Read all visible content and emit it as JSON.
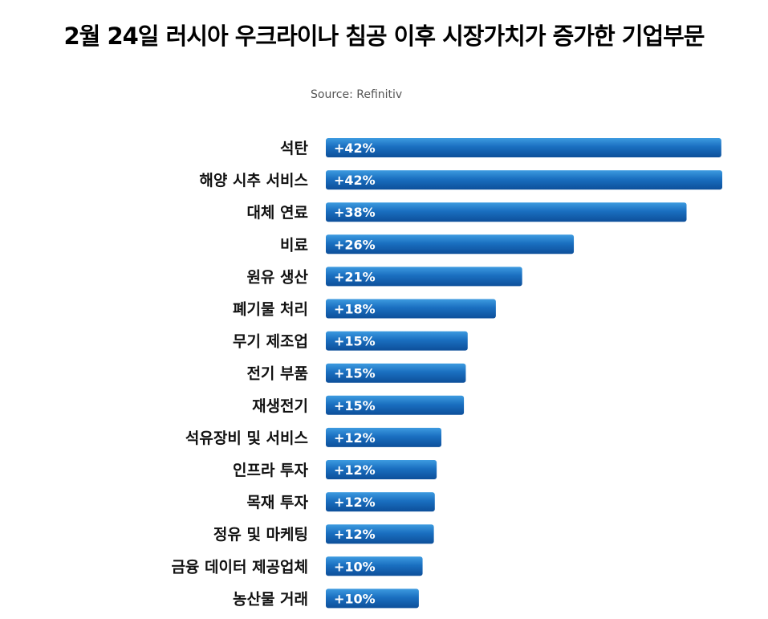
{
  "chart_data": {
    "type": "bar",
    "orientation": "horizontal",
    "title": "2월 24일 러시아 우크라이나 침공 이후 시장가치가 증가한 기업부문",
    "source": "Source: Refinitiv",
    "xlabel": "",
    "ylabel": "",
    "grid": false,
    "legend": "none",
    "unit": "%",
    "bar_color": "#1a6fc0",
    "bar_color_light": "#3d9be0",
    "bar_color_dark": "#0d4f9a",
    "categories": [
      "석탄",
      "해양 시추 서비스",
      "대체 연료",
      "비료",
      "원유 생산",
      "폐기물 처리",
      "무기 제조업",
      "전기 부품",
      "재생전기",
      "석유장비 및 서비스",
      "인프라 투자",
      "목재 투자",
      "정유 및 마케팅",
      "금융 데이터 제공업체",
      "농산물 거래"
    ],
    "values": [
      42.1,
      42.2,
      38.4,
      26.4,
      20.9,
      18.1,
      15.1,
      14.9,
      14.7,
      12.3,
      11.8,
      11.6,
      11.5,
      10.3,
      9.9
    ],
    "value_labels": [
      "+42%",
      "+42%",
      "+38%",
      "+26%",
      "+21%",
      "+18%",
      "+15%",
      "+15%",
      "+15%",
      "+12%",
      "+12%",
      "+12%",
      "+12%",
      "+10%",
      "+10%"
    ]
  }
}
